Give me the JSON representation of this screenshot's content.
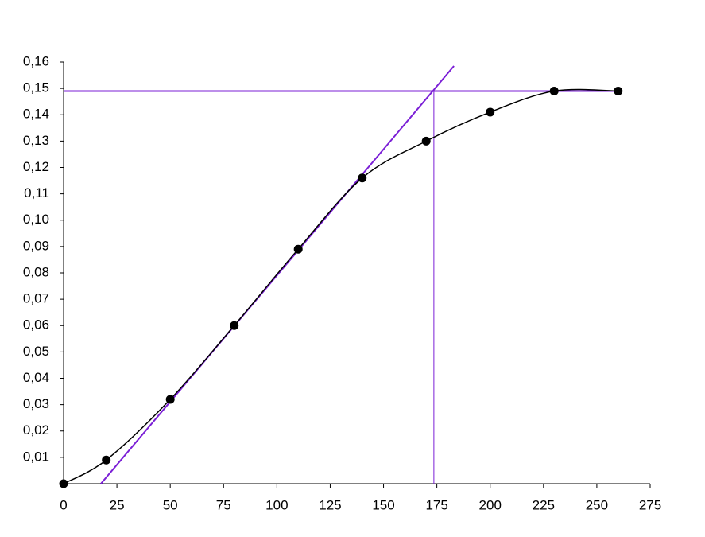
{
  "chart_data": {
    "type": "scatter",
    "xlim": [
      0,
      275
    ],
    "ylim": [
      0,
      0.16
    ],
    "xticks": [
      0,
      25,
      50,
      75,
      100,
      125,
      150,
      175,
      200,
      225,
      250,
      275
    ],
    "yticks": [
      {
        "value": 0.01,
        "label": "0,01"
      },
      {
        "value": 0.02,
        "label": "0,02"
      },
      {
        "value": 0.03,
        "label": "0,03"
      },
      {
        "value": 0.04,
        "label": "0,04"
      },
      {
        "value": 0.05,
        "label": "0,05"
      },
      {
        "value": 0.06,
        "label": "0,06"
      },
      {
        "value": 0.07,
        "label": "0,07"
      },
      {
        "value": 0.08,
        "label": "0,08"
      },
      {
        "value": 0.09,
        "label": "0,09"
      },
      {
        "value": 0.1,
        "label": "0,10"
      },
      {
        "value": 0.11,
        "label": "0,11"
      },
      {
        "value": 0.12,
        "label": "0,12"
      },
      {
        "value": 0.13,
        "label": "0,13"
      },
      {
        "value": 0.14,
        "label": "0,14"
      },
      {
        "value": 0.15,
        "label": "0,15"
      },
      {
        "value": 0.16,
        "label": "0,16"
      }
    ],
    "series": [
      {
        "color": "#000000",
        "x": [
          0,
          20,
          50,
          80,
          110,
          140,
          170,
          200,
          230,
          260
        ],
        "values": [
          0,
          0.009,
          0.032,
          0.06,
          0.089,
          0.116,
          0.13,
          0.141,
          0.149,
          0.149
        ]
      }
    ],
    "reference_lines": [
      {
        "color": "#7b1fd6",
        "x": [
          0,
          260
        ],
        "y": [
          0.149,
          0.149
        ]
      },
      {
        "color": "#7b1fd6",
        "x": [
          17.5,
          183
        ],
        "y": [
          0,
          0.1585
        ]
      },
      {
        "color": "#7b1fd6",
        "x": [
          173.6,
          173.6
        ],
        "y": [
          0,
          0.149
        ]
      }
    ]
  }
}
